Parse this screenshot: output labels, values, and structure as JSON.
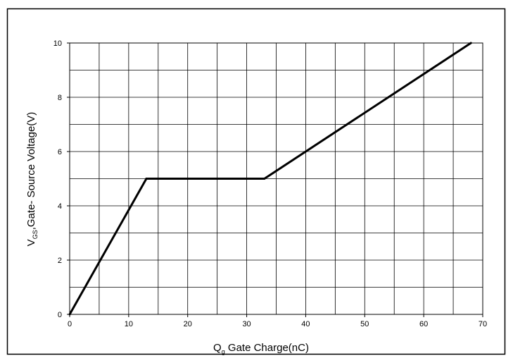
{
  "chart_data": {
    "type": "line",
    "xlabel": {
      "main": "Q",
      "sub": "g",
      "rest": " Gate Charge(nC)"
    },
    "ylabel": {
      "main": "V",
      "sub": "GS",
      "rest": ",Gate- Source Voltage(V)"
    },
    "xlim": [
      0,
      70
    ],
    "ylim": [
      0,
      10
    ],
    "x_ticks": [
      0,
      10,
      20,
      30,
      40,
      50,
      60,
      70
    ],
    "y_ticks": [
      0,
      2,
      4,
      6,
      8,
      10
    ],
    "x_minor_step": 5,
    "y_minor_step": 1,
    "grid": true,
    "series": [
      {
        "color": "#000000",
        "points": [
          {
            "x": 0,
            "y": 0
          },
          {
            "x": 13,
            "y": 5
          },
          {
            "x": 33,
            "y": 5
          },
          {
            "x": 68,
            "y": 10
          }
        ]
      }
    ]
  }
}
